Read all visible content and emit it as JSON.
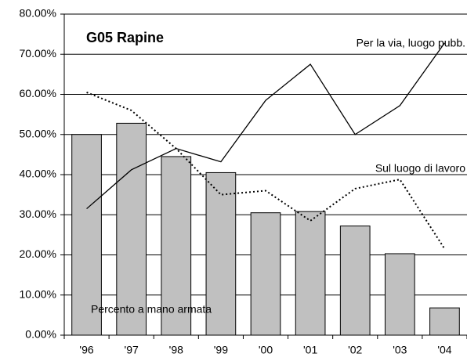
{
  "chart_data": {
    "type": "bar_line",
    "title": "G05   Rapine",
    "categories": [
      "'96",
      "'97",
      "'98",
      "'99",
      "'00",
      "'01",
      "'02",
      "'03",
      "'04"
    ],
    "series": [
      {
        "name": "Percento a mano armata",
        "type": "bar",
        "color": "#c0c0c0",
        "values": [
          50.0,
          52.8,
          44.5,
          40.5,
          30.5,
          30.8,
          27.2,
          20.3,
          6.8
        ]
      },
      {
        "name": "Per la via, luogo pubb.",
        "type": "line",
        "style": "solid",
        "color": "#000000",
        "values": [
          31.5,
          41.2,
          46.5,
          43.2,
          58.5,
          67.5,
          50.0,
          57.2,
          72.8
        ]
      },
      {
        "name": "Sul luogo di lavoro",
        "type": "line",
        "style": "dotted",
        "color": "#000000",
        "values": [
          60.5,
          56.0,
          46.5,
          35.0,
          36.0,
          28.5,
          36.5,
          38.8,
          21.5
        ]
      }
    ],
    "ylim": [
      0,
      80
    ],
    "yticks": [
      {
        "value": 0,
        "label": "0.00%"
      },
      {
        "value": 10,
        "label": "10.00%"
      },
      {
        "value": 20,
        "label": "20.00%"
      },
      {
        "value": 30,
        "label": "30.00%"
      },
      {
        "value": 40,
        "label": "40.00%"
      },
      {
        "value": 50,
        "label": "50.00%"
      },
      {
        "value": 60,
        "label": "60.00%"
      },
      {
        "value": 70,
        "label": "70.00%"
      },
      {
        "value": 80,
        "label": "80.00%"
      }
    ],
    "grid": true
  }
}
